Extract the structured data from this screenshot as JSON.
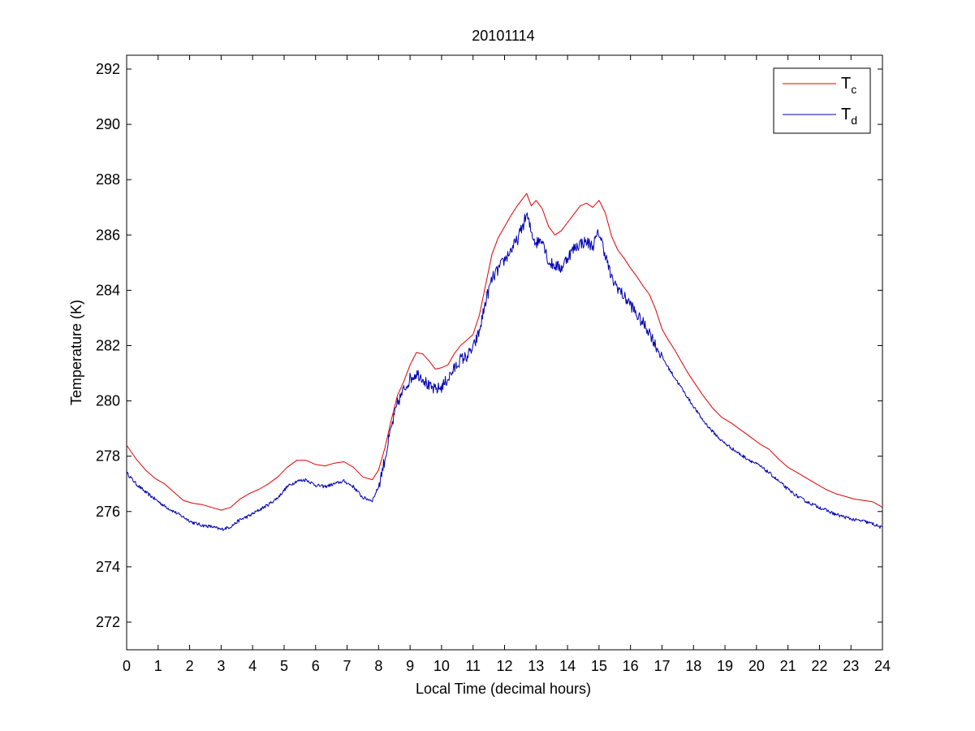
{
  "chart_data": {
    "type": "line",
    "title": "20101114",
    "xlabel": "Local Time (decimal hours)",
    "ylabel": "Temperature (K)",
    "xlim": [
      0,
      24
    ],
    "ylim": [
      271,
      292.5
    ],
    "xticks": [
      0,
      1,
      2,
      3,
      4,
      5,
      6,
      7,
      8,
      9,
      10,
      11,
      12,
      13,
      14,
      15,
      16,
      17,
      18,
      19,
      20,
      21,
      22,
      23,
      24
    ],
    "yticks": [
      272,
      274,
      276,
      278,
      280,
      282,
      284,
      286,
      288,
      290,
      292
    ],
    "grid": false,
    "legend": "top-right",
    "colors": {
      "Tc": "#e00000",
      "Td": "#0000b0"
    },
    "series": [
      {
        "name": "T",
        "subscript": "c",
        "key": "Tc",
        "noisy": false,
        "points": [
          [
            0,
            278.4
          ],
          [
            0.3,
            277.9
          ],
          [
            0.6,
            277.5
          ],
          [
            0.9,
            277.2
          ],
          [
            1.2,
            277.0
          ],
          [
            1.5,
            276.7
          ],
          [
            1.8,
            276.4
          ],
          [
            2.1,
            276.3
          ],
          [
            2.4,
            276.25
          ],
          [
            2.7,
            276.15
          ],
          [
            3.0,
            276.05
          ],
          [
            3.3,
            276.15
          ],
          [
            3.6,
            276.45
          ],
          [
            3.9,
            276.65
          ],
          [
            4.2,
            276.8
          ],
          [
            4.5,
            277.0
          ],
          [
            4.8,
            277.25
          ],
          [
            5.1,
            277.6
          ],
          [
            5.4,
            277.85
          ],
          [
            5.7,
            277.85
          ],
          [
            6.0,
            277.7
          ],
          [
            6.3,
            277.65
          ],
          [
            6.6,
            277.75
          ],
          [
            6.9,
            277.8
          ],
          [
            7.2,
            277.6
          ],
          [
            7.5,
            277.25
          ],
          [
            7.8,
            277.15
          ],
          [
            8.0,
            277.5
          ],
          [
            8.2,
            278.3
          ],
          [
            8.4,
            279.3
          ],
          [
            8.6,
            280.2
          ],
          [
            8.8,
            280.7
          ],
          [
            9.0,
            281.3
          ],
          [
            9.2,
            281.75
          ],
          [
            9.4,
            281.7
          ],
          [
            9.6,
            281.45
          ],
          [
            9.8,
            281.15
          ],
          [
            10.0,
            281.2
          ],
          [
            10.2,
            281.3
          ],
          [
            10.4,
            281.7
          ],
          [
            10.6,
            282.0
          ],
          [
            10.8,
            282.2
          ],
          [
            11.0,
            282.4
          ],
          [
            11.2,
            283.1
          ],
          [
            11.4,
            284.2
          ],
          [
            11.6,
            285.3
          ],
          [
            11.8,
            285.9
          ],
          [
            12.0,
            286.3
          ],
          [
            12.2,
            286.7
          ],
          [
            12.4,
            287.05
          ],
          [
            12.6,
            287.35
          ],
          [
            12.7,
            287.5
          ],
          [
            12.85,
            287.05
          ],
          [
            13.0,
            287.25
          ],
          [
            13.2,
            286.95
          ],
          [
            13.4,
            286.3
          ],
          [
            13.6,
            286.0
          ],
          [
            13.8,
            286.15
          ],
          [
            14.0,
            286.45
          ],
          [
            14.2,
            286.75
          ],
          [
            14.4,
            287.05
          ],
          [
            14.6,
            287.15
          ],
          [
            14.8,
            287.0
          ],
          [
            15.0,
            287.25
          ],
          [
            15.2,
            286.8
          ],
          [
            15.4,
            285.95
          ],
          [
            15.6,
            285.45
          ],
          [
            15.8,
            285.15
          ],
          [
            16.0,
            284.8
          ],
          [
            16.2,
            284.5
          ],
          [
            16.4,
            284.15
          ],
          [
            16.6,
            283.85
          ],
          [
            16.8,
            283.3
          ],
          [
            17.0,
            282.6
          ],
          [
            17.2,
            282.2
          ],
          [
            17.4,
            281.85
          ],
          [
            17.6,
            281.45
          ],
          [
            17.8,
            281.05
          ],
          [
            18.0,
            280.7
          ],
          [
            18.3,
            280.2
          ],
          [
            18.6,
            279.75
          ],
          [
            18.9,
            279.4
          ],
          [
            19.2,
            279.2
          ],
          [
            19.5,
            278.95
          ],
          [
            19.8,
            278.7
          ],
          [
            20.1,
            278.45
          ],
          [
            20.4,
            278.25
          ],
          [
            20.7,
            277.9
          ],
          [
            21.0,
            277.6
          ],
          [
            21.3,
            277.4
          ],
          [
            21.6,
            277.2
          ],
          [
            21.9,
            277.0
          ],
          [
            22.2,
            276.8
          ],
          [
            22.5,
            276.65
          ],
          [
            22.8,
            276.55
          ],
          [
            23.1,
            276.45
          ],
          [
            23.4,
            276.4
          ],
          [
            23.7,
            276.35
          ],
          [
            24.0,
            276.15
          ]
        ]
      },
      {
        "name": "T",
        "subscript": "d",
        "key": "Td",
        "noisy": true,
        "points": [
          [
            0,
            277.4
          ],
          [
            0.3,
            277.0
          ],
          [
            0.6,
            276.7
          ],
          [
            0.9,
            276.45
          ],
          [
            1.2,
            276.2
          ],
          [
            1.5,
            276.0
          ],
          [
            1.8,
            275.8
          ],
          [
            2.1,
            275.6
          ],
          [
            2.4,
            275.5
          ],
          [
            2.7,
            275.45
          ],
          [
            3.0,
            275.35
          ],
          [
            3.3,
            275.45
          ],
          [
            3.6,
            275.7
          ],
          [
            3.9,
            275.85
          ],
          [
            4.2,
            276.05
          ],
          [
            4.5,
            276.25
          ],
          [
            4.8,
            276.5
          ],
          [
            5.1,
            276.9
          ],
          [
            5.4,
            277.1
          ],
          [
            5.7,
            277.15
          ],
          [
            6.0,
            276.95
          ],
          [
            6.3,
            276.9
          ],
          [
            6.6,
            277.0
          ],
          [
            6.9,
            277.1
          ],
          [
            7.2,
            276.9
          ],
          [
            7.5,
            276.5
          ],
          [
            7.8,
            276.4
          ],
          [
            8.0,
            276.9
          ],
          [
            8.2,
            277.9
          ],
          [
            8.4,
            279.0
          ],
          [
            8.6,
            279.9
          ],
          [
            8.8,
            280.4
          ],
          [
            9.0,
            280.8
          ],
          [
            9.2,
            281.0
          ],
          [
            9.4,
            280.85
          ],
          [
            9.6,
            280.5
          ],
          [
            9.8,
            280.4
          ],
          [
            10.0,
            280.5
          ],
          [
            10.2,
            280.8
          ],
          [
            10.4,
            281.15
          ],
          [
            10.6,
            281.5
          ],
          [
            10.8,
            281.6
          ],
          [
            11.0,
            281.9
          ],
          [
            11.2,
            282.5
          ],
          [
            11.4,
            283.6
          ],
          [
            11.6,
            284.4
          ],
          [
            11.8,
            284.75
          ],
          [
            12.0,
            285.1
          ],
          [
            12.2,
            285.45
          ],
          [
            12.4,
            285.8
          ],
          [
            12.6,
            286.4
          ],
          [
            12.7,
            286.75
          ],
          [
            12.85,
            286.1
          ],
          [
            13.0,
            285.7
          ],
          [
            13.2,
            285.9
          ],
          [
            13.4,
            285.0
          ],
          [
            13.6,
            284.9
          ],
          [
            13.8,
            284.8
          ],
          [
            14.0,
            285.2
          ],
          [
            14.2,
            285.5
          ],
          [
            14.4,
            285.7
          ],
          [
            14.6,
            285.75
          ],
          [
            14.8,
            285.6
          ],
          [
            15.0,
            286.1
          ],
          [
            15.2,
            285.3
          ],
          [
            15.4,
            284.4
          ],
          [
            15.6,
            284.1
          ],
          [
            15.8,
            283.75
          ],
          [
            16.0,
            283.5
          ],
          [
            16.2,
            283.1
          ],
          [
            16.4,
            282.8
          ],
          [
            16.6,
            282.5
          ],
          [
            16.8,
            282.0
          ],
          [
            17.0,
            281.6
          ],
          [
            17.2,
            281.2
          ],
          [
            17.4,
            280.85
          ],
          [
            17.6,
            280.5
          ],
          [
            17.8,
            280.15
          ],
          [
            18.0,
            279.8
          ],
          [
            18.3,
            279.3
          ],
          [
            18.6,
            278.9
          ],
          [
            18.9,
            278.55
          ],
          [
            19.2,
            278.3
          ],
          [
            19.5,
            278.05
          ],
          [
            19.8,
            277.85
          ],
          [
            20.1,
            277.65
          ],
          [
            20.4,
            277.4
          ],
          [
            20.7,
            277.1
          ],
          [
            21.0,
            276.8
          ],
          [
            21.3,
            276.55
          ],
          [
            21.6,
            276.35
          ],
          [
            21.9,
            276.2
          ],
          [
            22.2,
            276.05
          ],
          [
            22.5,
            275.9
          ],
          [
            22.8,
            275.8
          ],
          [
            23.1,
            275.7
          ],
          [
            23.4,
            275.65
          ],
          [
            23.7,
            275.55
          ],
          [
            24.0,
            275.4
          ]
        ]
      }
    ]
  }
}
